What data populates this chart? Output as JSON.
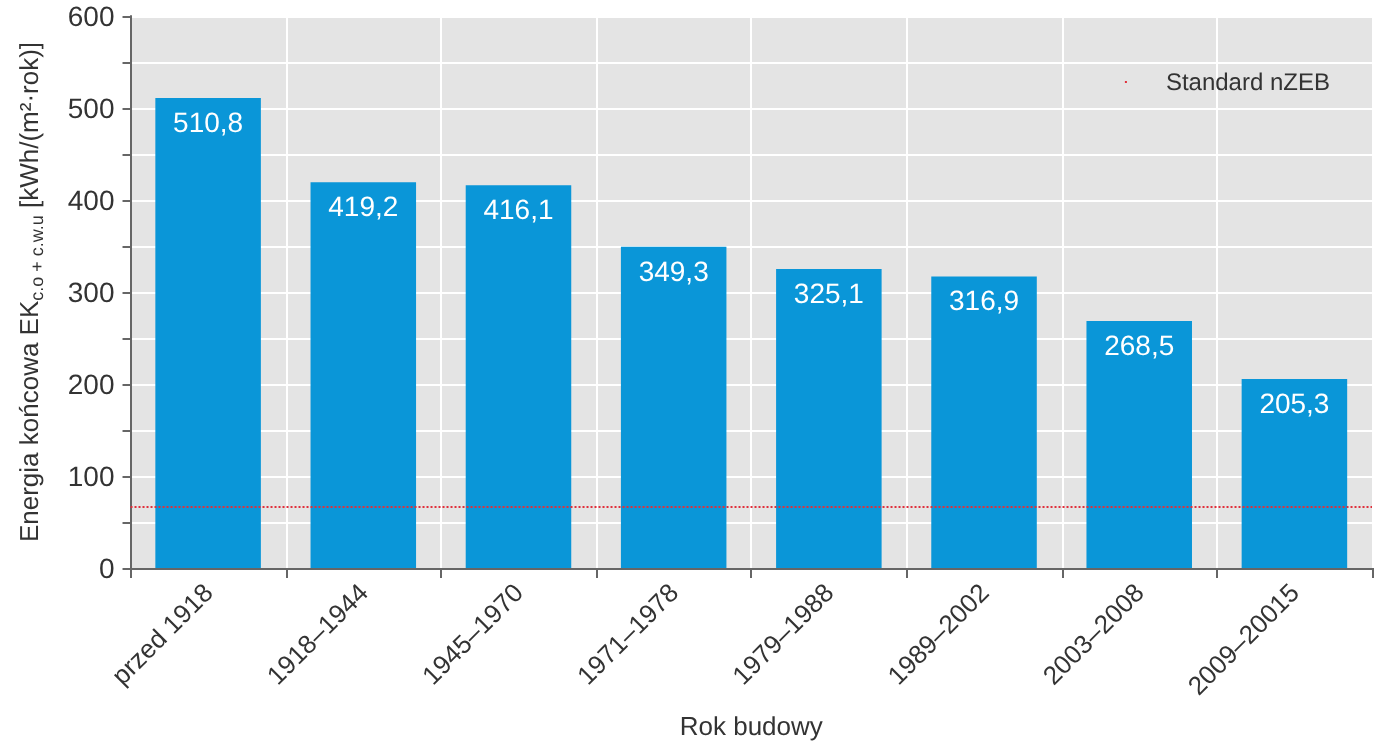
{
  "chart_data": {
    "type": "bar",
    "xlabel": "Rok budowy",
    "ylabel": "Energia końcowa EK$_{c.o + c.w.u}$ [kWh/(m²·rok)]",
    "categories": [
      "przed 1918",
      "1918–1944",
      "1945–1970",
      "1971–1978",
      "1979–1988",
      "1989–2002",
      "2003–2008",
      "2009–20015"
    ],
    "values": [
      510.8,
      419.2,
      416.1,
      349.3,
      325.1,
      316.9,
      268.5,
      205.3
    ],
    "value_labels": [
      "510,8",
      "419,2",
      "416,1",
      "349,3",
      "325,1",
      "316,9",
      "268,5",
      "205,3"
    ],
    "color": "#0a96d8",
    "ylim": [
      0,
      600
    ],
    "yticks": [
      0,
      {
        "value": 50,
        "label": null
      },
      100,
      {
        "value": 150,
        "label": null
      },
      200,
      {
        "value": 250,
        "label": null
      },
      300,
      {
        "value": 350,
        "label": null
      },
      400,
      {
        "value": 450,
        "label": null
      },
      500,
      {
        "value": 550,
        "label": null
      },
      600
    ],
    "grid": true,
    "legend": "top right",
    "ref_lines": [
      {
        "axis": "y",
        "value": 67,
        "label": "Standard nZEB",
        "color": "#e0303a",
        "line_style": "dotted"
      }
    ]
  }
}
